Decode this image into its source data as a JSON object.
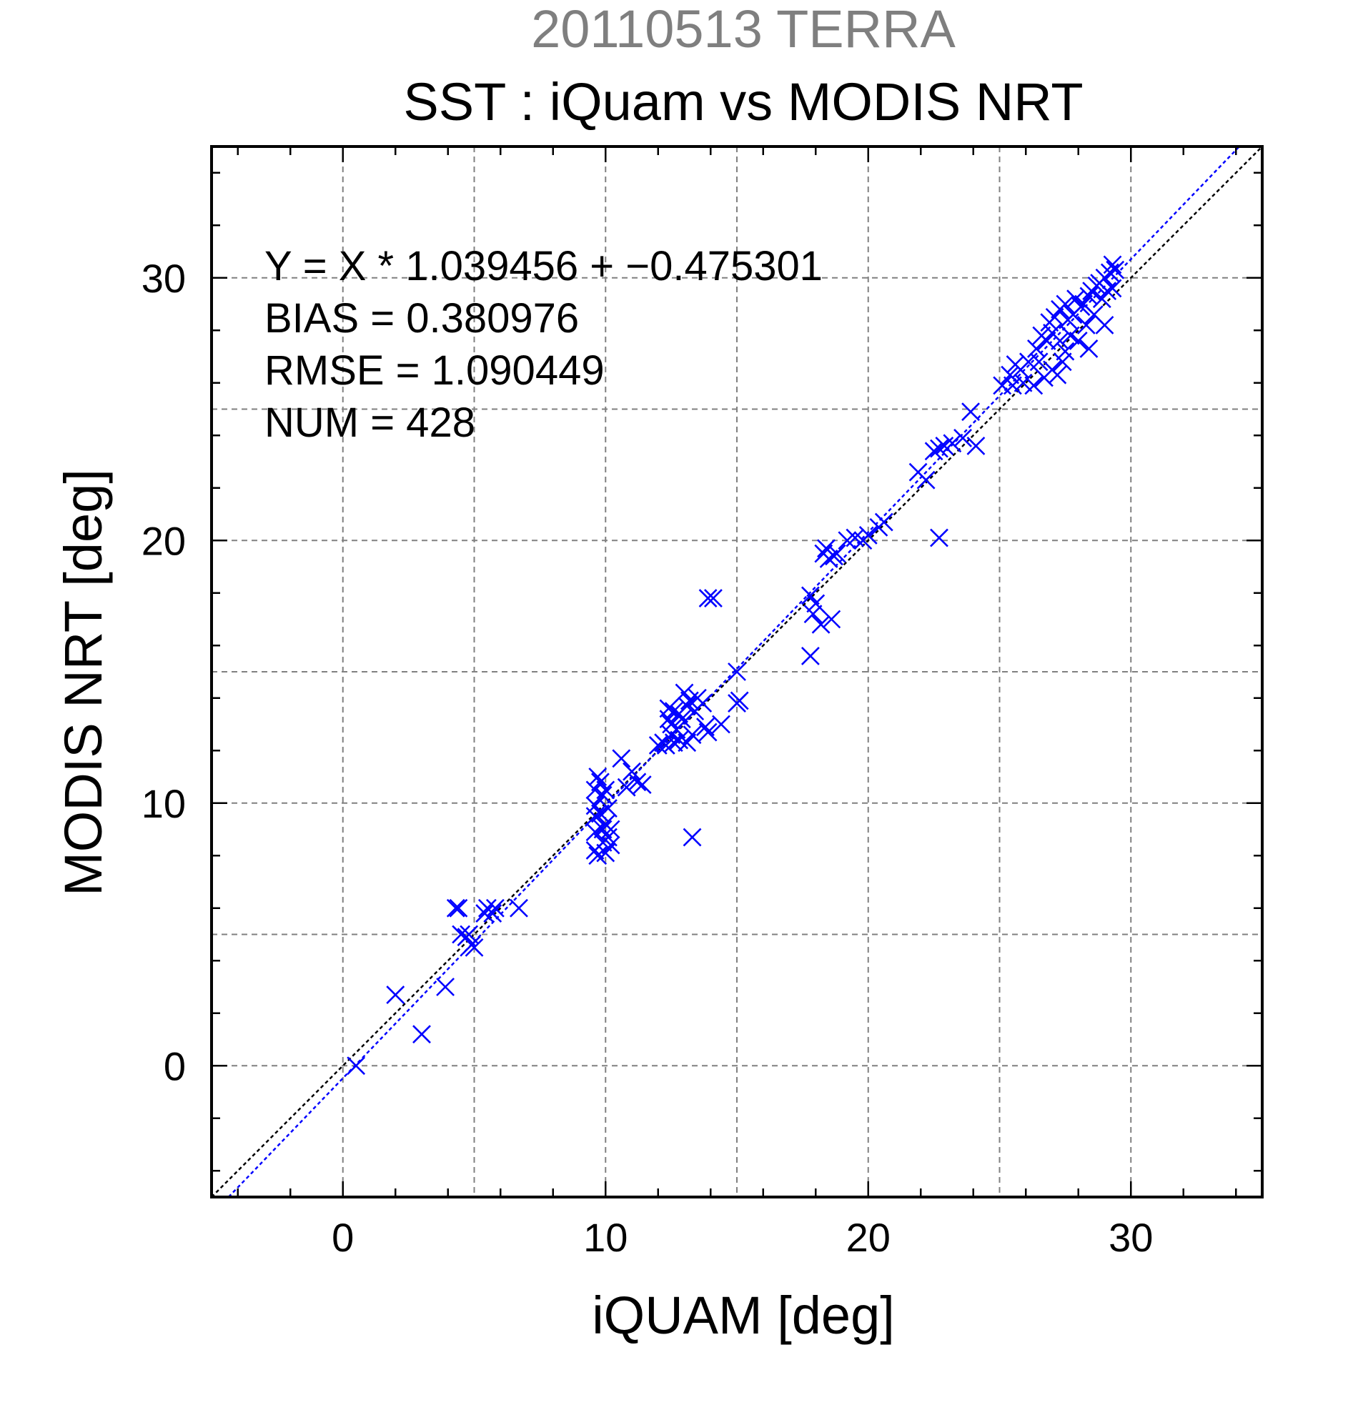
{
  "chart_data": {
    "type": "scatter",
    "suptitle": "20110513 TERRA",
    "title": "SST : iQuam vs MODIS NRT",
    "xlabel": "iQUAM [deg]",
    "ylabel": "MODIS NRT [deg]",
    "xlim": [
      -5,
      35
    ],
    "ylim": [
      -5,
      35
    ],
    "xticks": [
      0,
      10,
      20,
      30
    ],
    "yticks": [
      0,
      10,
      20,
      30
    ],
    "grid": true,
    "legend": "none",
    "marker": "x",
    "colors": {
      "points": "#0000ff",
      "fit_line": "#0000ff",
      "identity_line": "#000000",
      "suptitle": "#7f7f7f"
    },
    "stats": {
      "equation": "Y = X * 1.039456 + −0.475301",
      "bias": "BIAS = 0.380976",
      "rmse": "RMSE = 1.090449",
      "num": "NUM = 428"
    },
    "fit": {
      "slope": 1.039456,
      "intercept": -0.475301
    },
    "points": [
      [
        0.5,
        0.0
      ],
      [
        2.0,
        2.7
      ],
      [
        3.0,
        1.2
      ],
      [
        3.9,
        3.0
      ],
      [
        4.3,
        6.0
      ],
      [
        4.4,
        6.0
      ],
      [
        4.5,
        5.0
      ],
      [
        4.7,
        4.9
      ],
      [
        4.8,
        5.0
      ],
      [
        4.9,
        4.6
      ],
      [
        5.0,
        4.5
      ],
      [
        5.4,
        5.8
      ],
      [
        5.5,
        6.0
      ],
      [
        5.7,
        5.8
      ],
      [
        5.8,
        6.0
      ],
      [
        6.7,
        6.0
      ],
      [
        9.6,
        10.5
      ],
      [
        9.6,
        9.9
      ],
      [
        9.6,
        9.5
      ],
      [
        9.6,
        8.9
      ],
      [
        9.6,
        8.2
      ],
      [
        9.7,
        8.0
      ],
      [
        9.7,
        11.0
      ],
      [
        9.8,
        10.8
      ],
      [
        9.8,
        9.6
      ],
      [
        9.9,
        10.3
      ],
      [
        9.9,
        9.0
      ],
      [
        9.9,
        8.5
      ],
      [
        10.0,
        8.1
      ],
      [
        10.0,
        9.2
      ],
      [
        10.0,
        10.5
      ],
      [
        10.1,
        8.7
      ],
      [
        10.1,
        9.8
      ],
      [
        10.2,
        8.4
      ],
      [
        10.2,
        9.0
      ],
      [
        10.6,
        11.7
      ],
      [
        10.8,
        10.6
      ],
      [
        11.0,
        11.2
      ],
      [
        11.2,
        10.8
      ],
      [
        11.4,
        10.7
      ],
      [
        12.0,
        12.2
      ],
      [
        12.2,
        12.3
      ],
      [
        12.3,
        12.2
      ],
      [
        12.4,
        13.6
      ],
      [
        12.4,
        13.2
      ],
      [
        12.5,
        12.6
      ],
      [
        12.5,
        13.0
      ],
      [
        12.6,
        12.3
      ],
      [
        12.6,
        13.5
      ],
      [
        12.7,
        12.8
      ],
      [
        12.8,
        13.4
      ],
      [
        12.8,
        12.4
      ],
      [
        12.9,
        13.2
      ],
      [
        13.0,
        14.2
      ],
      [
        13.1,
        13.7
      ],
      [
        13.1,
        12.3
      ],
      [
        13.2,
        13.9
      ],
      [
        13.3,
        8.7
      ],
      [
        13.3,
        12.6
      ],
      [
        13.4,
        13.5
      ],
      [
        13.5,
        14.0
      ],
      [
        13.7,
        13.8
      ],
      [
        13.8,
        12.9
      ],
      [
        13.9,
        12.7
      ],
      [
        13.9,
        17.8
      ],
      [
        14.1,
        17.8
      ],
      [
        14.4,
        13.0
      ],
      [
        15.0,
        15.0
      ],
      [
        15.0,
        13.8
      ],
      [
        15.1,
        13.9
      ],
      [
        17.8,
        15.6
      ],
      [
        17.8,
        17.9
      ],
      [
        17.9,
        17.2
      ],
      [
        18.0,
        17.6
      ],
      [
        18.2,
        16.8
      ],
      [
        18.3,
        19.5
      ],
      [
        18.4,
        19.7
      ],
      [
        18.5,
        19.3
      ],
      [
        18.6,
        17.0
      ],
      [
        18.7,
        19.4
      ],
      [
        18.8,
        19.5
      ],
      [
        19.2,
        20.0
      ],
      [
        19.5,
        20.1
      ],
      [
        19.8,
        20.0
      ],
      [
        20.0,
        20.2
      ],
      [
        20.4,
        20.5
      ],
      [
        20.6,
        20.7
      ],
      [
        21.9,
        22.6
      ],
      [
        22.2,
        22.3
      ],
      [
        22.5,
        23.4
      ],
      [
        22.7,
        23.5
      ],
      [
        22.7,
        20.1
      ],
      [
        22.9,
        23.6
      ],
      [
        23.2,
        23.7
      ],
      [
        23.6,
        23.9
      ],
      [
        23.9,
        24.9
      ],
      [
        24.1,
        23.6
      ],
      [
        25.1,
        25.9
      ],
      [
        25.4,
        26.3
      ],
      [
        25.5,
        25.9
      ],
      [
        25.6,
        26.7
      ],
      [
        25.8,
        26.5
      ],
      [
        25.9,
        26.0
      ],
      [
        26.1,
        26.8
      ],
      [
        26.3,
        25.9
      ],
      [
        26.4,
        27.3
      ],
      [
        26.5,
        26.8
      ],
      [
        26.6,
        27.8
      ],
      [
        26.7,
        26.2
      ],
      [
        26.8,
        27.6
      ],
      [
        26.9,
        28.3
      ],
      [
        27.0,
        26.5
      ],
      [
        27.0,
        27.9
      ],
      [
        27.1,
        28.5
      ],
      [
        27.2,
        26.3
      ],
      [
        27.3,
        27.6
      ],
      [
        27.3,
        28.8
      ],
      [
        27.4,
        26.8
      ],
      [
        27.5,
        29.0
      ],
      [
        27.5,
        27.2
      ],
      [
        27.6,
        28.4
      ],
      [
        27.7,
        27.8
      ],
      [
        27.8,
        28.6
      ],
      [
        27.9,
        29.2
      ],
      [
        28.0,
        27.6
      ],
      [
        28.1,
        28.9
      ],
      [
        28.2,
        29.0
      ],
      [
        28.3,
        28.2
      ],
      [
        28.4,
        29.3
      ],
      [
        28.4,
        27.3
      ],
      [
        28.5,
        29.5
      ],
      [
        28.6,
        28.6
      ],
      [
        28.7,
        29.7
      ],
      [
        28.8,
        29.8
      ],
      [
        28.9,
        29.2
      ],
      [
        29.0,
        30.0
      ],
      [
        29.0,
        28.2
      ],
      [
        29.1,
        29.5
      ],
      [
        29.2,
        30.2
      ],
      [
        29.3,
        30.5
      ],
      [
        29.3,
        29.6
      ],
      [
        29.4,
        30.3
      ]
    ]
  }
}
